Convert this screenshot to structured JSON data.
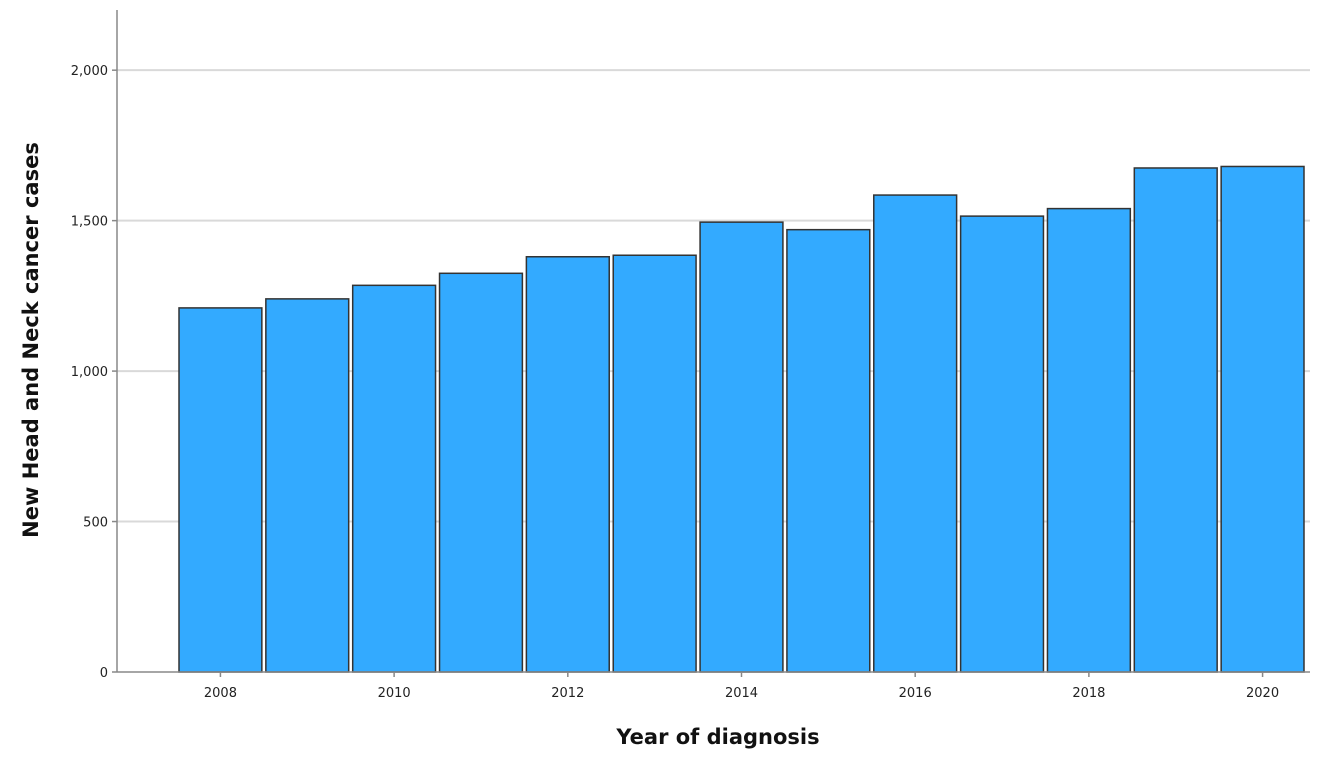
{
  "chart_data": {
    "type": "bar",
    "title": "",
    "xlabel": "Year of diagnosis",
    "ylabel": "New Head and Neck cancer cases",
    "categories": [
      "2008",
      "2009",
      "2010",
      "2011",
      "2012",
      "2013",
      "2014",
      "2015",
      "2016",
      "2017",
      "2018",
      "2019",
      "2020"
    ],
    "values": [
      1210,
      1240,
      1285,
      1325,
      1380,
      1385,
      1495,
      1470,
      1585,
      1515,
      1540,
      1675,
      1680
    ],
    "x_tick_labels": [
      "2008",
      "2010",
      "2012",
      "2014",
      "2016",
      "2018",
      "2020"
    ],
    "y_ticks": [
      0,
      500,
      1000,
      1500,
      2000
    ],
    "y_tick_labels": [
      "0",
      "500",
      "1,000",
      "1,500",
      "2,000"
    ],
    "ylim": [
      0,
      2200
    ],
    "grid": true,
    "legend": "none",
    "colors": {
      "bar_fill": "#33aaff",
      "bar_stroke": "#333333",
      "grid": "#d9d9d9",
      "axis": "#888888"
    }
  }
}
